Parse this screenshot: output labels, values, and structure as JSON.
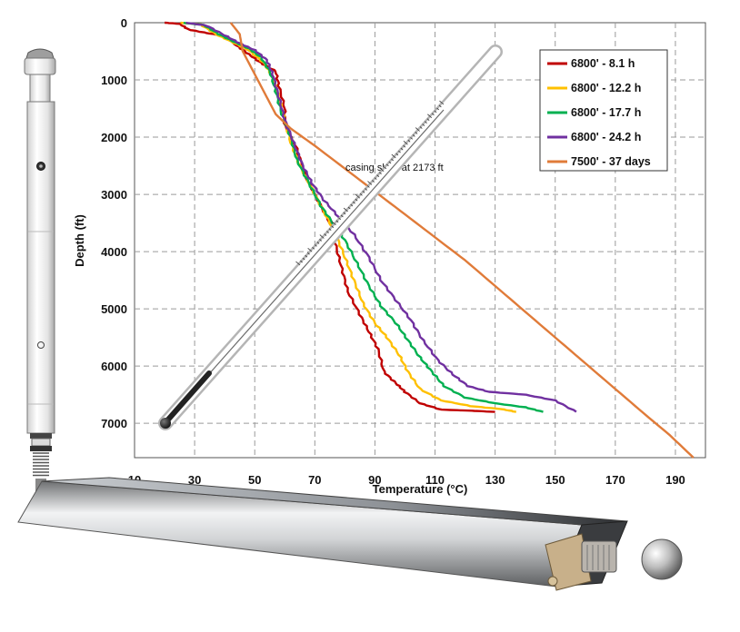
{
  "chart_data": {
    "type": "line",
    "title": "",
    "xlabel": "Temperature (°C)",
    "ylabel": "Depth (ft)",
    "xlim": [
      10,
      200
    ],
    "ylim": [
      0,
      7600
    ],
    "y_inverted": true,
    "x_ticks": [
      10,
      30,
      50,
      70,
      90,
      110,
      130,
      150,
      170,
      190
    ],
    "y_ticks": [
      0,
      1000,
      2000,
      3000,
      4000,
      5000,
      6000,
      7000
    ],
    "grid": "dashed",
    "legend_position": "top-right",
    "annotation": "casing shoe at 2173 ft",
    "series": [
      {
        "name": "6800' - 8.1 h",
        "color": "#c00000",
        "points": [
          [
            20,
            0
          ],
          [
            25,
            20
          ],
          [
            28,
            120
          ],
          [
            34,
            180
          ],
          [
            40,
            230
          ],
          [
            44,
            400
          ],
          [
            48,
            550
          ],
          [
            52,
            700
          ],
          [
            57,
            850
          ],
          [
            58,
            1100
          ],
          [
            60,
            1500
          ],
          [
            60,
            1800
          ],
          [
            64,
            2200
          ],
          [
            67,
            2700
          ],
          [
            71,
            3100
          ],
          [
            75,
            3500
          ],
          [
            77,
            3900
          ],
          [
            79,
            4300
          ],
          [
            81,
            4700
          ],
          [
            85,
            5100
          ],
          [
            88,
            5400
          ],
          [
            91,
            5700
          ],
          [
            93,
            6100
          ],
          [
            97,
            6300
          ],
          [
            100,
            6450
          ],
          [
            105,
            6650
          ],
          [
            112,
            6760
          ],
          [
            122,
            6780
          ],
          [
            130,
            6800
          ]
        ]
      },
      {
        "name": "6800' - 12.2 h",
        "color": "#ffc000",
        "points": [
          [
            25,
            0
          ],
          [
            32,
            30
          ],
          [
            37,
            200
          ],
          [
            43,
            350
          ],
          [
            48,
            480
          ],
          [
            53,
            700
          ],
          [
            56,
            950
          ],
          [
            58,
            1300
          ],
          [
            60,
            1700
          ],
          [
            62,
            2100
          ],
          [
            65,
            2500
          ],
          [
            69,
            2900
          ],
          [
            73,
            3300
          ],
          [
            77,
            3700
          ],
          [
            80,
            4100
          ],
          [
            83,
            4500
          ],
          [
            86,
            4900
          ],
          [
            90,
            5250
          ],
          [
            94,
            5500
          ],
          [
            98,
            5800
          ],
          [
            101,
            6100
          ],
          [
            105,
            6400
          ],
          [
            112,
            6600
          ],
          [
            122,
            6700
          ],
          [
            132,
            6750
          ],
          [
            137,
            6800
          ]
        ]
      },
      {
        "name": "6800' - 17.7 h",
        "color": "#00b050",
        "points": [
          [
            26,
            0
          ],
          [
            33,
            40
          ],
          [
            38,
            200
          ],
          [
            43,
            330
          ],
          [
            48,
            450
          ],
          [
            52,
            600
          ],
          [
            55,
            850
          ],
          [
            57,
            1200
          ],
          [
            59,
            1600
          ],
          [
            62,
            2000
          ],
          [
            64,
            2400
          ],
          [
            68,
            2800
          ],
          [
            72,
            3200
          ],
          [
            76,
            3500
          ],
          [
            80,
            3800
          ],
          [
            84,
            4200
          ],
          [
            88,
            4600
          ],
          [
            92,
            4950
          ],
          [
            97,
            5250
          ],
          [
            101,
            5550
          ],
          [
            105,
            5850
          ],
          [
            109,
            6100
          ],
          [
            113,
            6350
          ],
          [
            120,
            6550
          ],
          [
            130,
            6650
          ],
          [
            140,
            6720
          ],
          [
            146,
            6800
          ]
        ]
      },
      {
        "name": "6800' - 24.2 h",
        "color": "#7030a0",
        "points": [
          [
            27,
            0
          ],
          [
            34,
            50
          ],
          [
            40,
            220
          ],
          [
            45,
            360
          ],
          [
            50,
            480
          ],
          [
            54,
            650
          ],
          [
            56,
            900
          ],
          [
            58,
            1300
          ],
          [
            60,
            1700
          ],
          [
            63,
            2100
          ],
          [
            66,
            2500
          ],
          [
            69,
            2800
          ],
          [
            73,
            3100
          ],
          [
            78,
            3400
          ],
          [
            83,
            3700
          ],
          [
            88,
            4100
          ],
          [
            92,
            4500
          ],
          [
            97,
            4850
          ],
          [
            102,
            5200
          ],
          [
            106,
            5550
          ],
          [
            111,
            5900
          ],
          [
            116,
            6150
          ],
          [
            121,
            6350
          ],
          [
            128,
            6450
          ],
          [
            140,
            6500
          ],
          [
            150,
            6600
          ],
          [
            157,
            6800
          ]
        ]
      },
      {
        "name": "7500' - 37 days",
        "color": "#e07b39",
        "points": [
          [
            42,
            0
          ],
          [
            45,
            200
          ],
          [
            46,
            500
          ],
          [
            48,
            700
          ],
          [
            50,
            900
          ],
          [
            54,
            1300
          ],
          [
            57,
            1600
          ],
          [
            62,
            1850
          ],
          [
            70,
            2150
          ],
          [
            80,
            2550
          ],
          [
            90,
            2950
          ],
          [
            100,
            3350
          ],
          [
            110,
            3750
          ],
          [
            120,
            4150
          ],
          [
            130,
            4600
          ],
          [
            140,
            5050
          ],
          [
            150,
            5500
          ],
          [
            160,
            5950
          ],
          [
            170,
            6400
          ],
          [
            180,
            6850
          ],
          [
            188,
            7200
          ],
          [
            192,
            7400
          ],
          [
            196,
            7600
          ]
        ]
      }
    ]
  }
}
